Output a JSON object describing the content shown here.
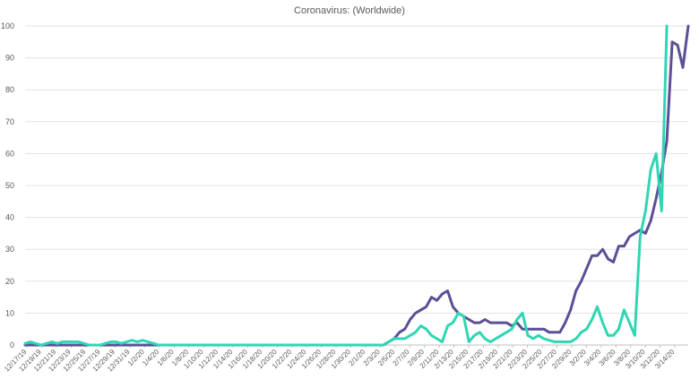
{
  "chart_data": {
    "type": "line",
    "title": "Coronavirus: (Worldwide)",
    "xlabel": "",
    "ylabel": "",
    "ylim": [
      0,
      100
    ],
    "yticks": [
      0,
      10,
      20,
      30,
      40,
      50,
      60,
      70,
      80,
      90,
      100
    ],
    "grid": "horizontal",
    "x_tick_labels": [
      "12/17/19",
      "12/19/19",
      "12/21/19",
      "12/23/19",
      "12/25/19",
      "12/27/19",
      "12/29/19",
      "12/31/19",
      "1/2/20",
      "1/4/20",
      "1/6/20",
      "1/8/20",
      "1/10/20",
      "1/12/20",
      "1/14/20",
      "1/16/20",
      "1/18/20",
      "1/20/20",
      "1/22/20",
      "1/24/20",
      "1/26/20",
      "1/28/20",
      "1/30/20",
      "2/1/20",
      "2/3/20",
      "2/5/20",
      "2/7/20",
      "2/9/20",
      "2/11/20",
      "2/13/20",
      "2/15/20",
      "2/17/20",
      "2/19/20",
      "2/21/20",
      "2/23/20",
      "2/25/20",
      "2/27/20",
      "2/29/20",
      "3/2/20",
      "3/4/20",
      "3/6/20",
      "3/8/20",
      "3/10/20",
      "3/12/20",
      "3/14/20"
    ],
    "colors": {
      "series_1": "#5b4f96",
      "series_2": "#2fd6b3",
      "grid": "#e3e3e3",
      "axis": "#bfbfbf",
      "tick_text": "#595959"
    },
    "series": [
      {
        "values": [
          0,
          0,
          0,
          0,
          0,
          0,
          0,
          0,
          0,
          0,
          0,
          0,
          0,
          0,
          0,
          0,
          0,
          0,
          0,
          0,
          0,
          0,
          0,
          0,
          0,
          0,
          0,
          0,
          0,
          0,
          0,
          0,
          0,
          0,
          0,
          0,
          0,
          0,
          0,
          0,
          0,
          0,
          0,
          0,
          0,
          0,
          0,
          0,
          0,
          0,
          0,
          0,
          0,
          0,
          0,
          0,
          0,
          0,
          0,
          0,
          0,
          0,
          0,
          0,
          0,
          0,
          0,
          0,
          1,
          2,
          4,
          5,
          8,
          10,
          11,
          12,
          15,
          14,
          16,
          17,
          12,
          10,
          9,
          8,
          7,
          7,
          8,
          7,
          7,
          7,
          7,
          6,
          7,
          5,
          5,
          5,
          5,
          5,
          4,
          4,
          4,
          7,
          11,
          17,
          20,
          24,
          28,
          28,
          30,
          27,
          26,
          31,
          31,
          34,
          35,
          36,
          35,
          39,
          46,
          54,
          64,
          95,
          94,
          87,
          100
        ]
      },
      {
        "values": [
          0.5,
          1,
          0.5,
          0,
          0.5,
          1,
          0.5,
          1,
          1,
          1,
          1,
          0.5,
          0,
          0,
          0,
          0.5,
          1,
          1,
          0.5,
          1,
          1.5,
          1,
          1.5,
          1,
          0.5,
          0,
          0,
          0,
          0,
          0,
          0,
          0,
          0,
          0,
          0,
          0,
          0,
          0,
          0,
          0,
          0,
          0,
          0,
          0,
          0,
          0,
          0,
          0,
          0,
          0,
          0,
          0,
          0,
          0,
          0,
          0,
          0,
          0,
          0,
          0,
          0,
          0,
          0,
          0,
          0,
          0,
          0,
          0,
          1,
          2,
          2,
          2,
          3,
          4,
          6,
          5,
          3,
          2,
          1,
          6,
          7,
          10,
          9,
          1,
          3,
          4,
          2,
          1,
          2,
          3,
          4,
          5,
          8,
          10,
          3,
          2,
          3,
          2,
          1.5,
          1,
          1,
          1,
          1,
          2,
          4,
          5,
          8,
          12,
          7,
          3,
          3,
          5,
          11,
          7,
          3,
          34,
          42,
          55,
          60,
          42,
          100
        ]
      }
    ]
  }
}
